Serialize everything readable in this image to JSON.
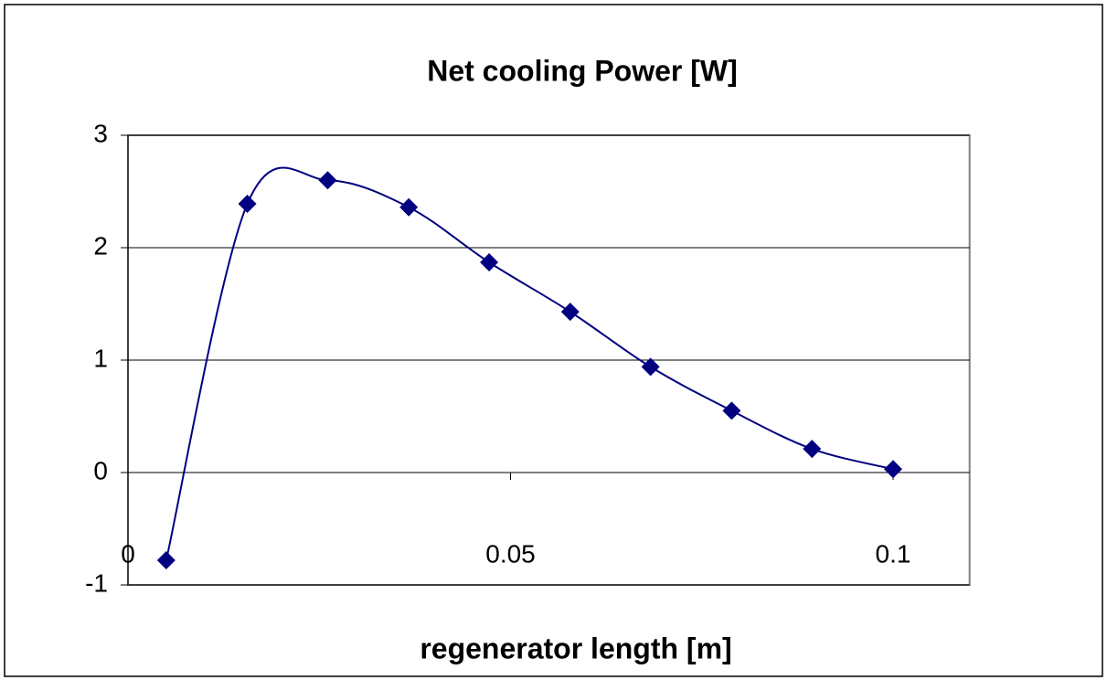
{
  "chart_data": {
    "type": "line",
    "title": "Net cooling Power [W]",
    "x_label": "regenerator length   [m]",
    "x": [
      0.005,
      0.0156,
      0.0261,
      0.0367,
      0.0472,
      0.0578,
      0.0683,
      0.0789,
      0.0894,
      0.1
    ],
    "series": [
      {
        "color": "#000080",
        "values": [
          -0.78,
          2.39,
          2.6,
          2.36,
          1.87,
          1.43,
          0.94,
          0.55,
          0.21,
          0.03
        ]
      }
    ],
    "xlim": [
      0,
      0.11
    ],
    "xticks": [
      0,
      0.05,
      0.1
    ],
    "ylim": [
      -1,
      3
    ],
    "yticks": [
      -1,
      0,
      1,
      2,
      3
    ],
    "grid": true
  }
}
